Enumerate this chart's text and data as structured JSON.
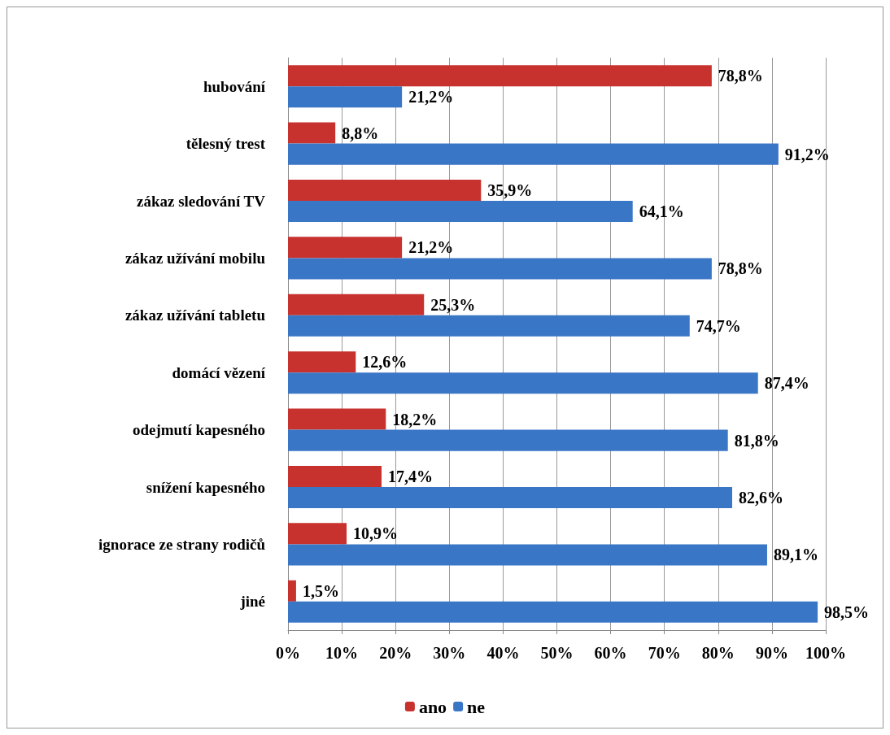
{
  "chart_data": {
    "type": "bar",
    "orientation": "horizontal",
    "categories": [
      "hubování",
      "tělesný trest",
      "zákaz sledování TV",
      "zákaz užívání mobilu",
      "zákaz užívání tabletu",
      "domácí vězení",
      "odejmutí kapesného",
      "snížení kapesného",
      "ignorace ze strany rodičů",
      "jiné"
    ],
    "series": [
      {
        "name": "ano",
        "color": "#c8322e",
        "values": [
          78.8,
          8.8,
          35.9,
          21.2,
          25.3,
          12.6,
          18.2,
          17.4,
          10.9,
          1.5
        ],
        "value_labels": [
          "78,8%",
          "8,8%",
          "35,9%",
          "21,2%",
          "25,3%",
          "12,6%",
          "18,2%",
          "17,4%",
          "10,9%",
          "1,5%"
        ]
      },
      {
        "name": "ne",
        "color": "#3a76c6",
        "values": [
          21.2,
          91.2,
          64.1,
          78.8,
          74.7,
          87.4,
          81.8,
          82.6,
          89.1,
          98.5
        ],
        "value_labels": [
          "21,2%",
          "91,2%",
          "64,1%",
          "78,8%",
          "74,7%",
          "87,4%",
          "81,8%",
          "82,6%",
          "89,1%",
          "98,5%"
        ]
      }
    ],
    "xlim": [
      0,
      100
    ],
    "xticks": [
      {
        "value": 0,
        "label": "0%"
      },
      {
        "value": 10,
        "label": "10%"
      },
      {
        "value": 20,
        "label": "20%"
      },
      {
        "value": 30,
        "label": "30%"
      },
      {
        "value": 40,
        "label": "40%"
      },
      {
        "value": 50,
        "label": "50%"
      },
      {
        "value": 60,
        "label": "60%"
      },
      {
        "value": 70,
        "label": "70%"
      },
      {
        "value": 80,
        "label": "80%"
      },
      {
        "value": 90,
        "label": "90%"
      },
      {
        "value": 100,
        "label": "100%"
      }
    ],
    "grid": "x",
    "legend": "bottom"
  }
}
